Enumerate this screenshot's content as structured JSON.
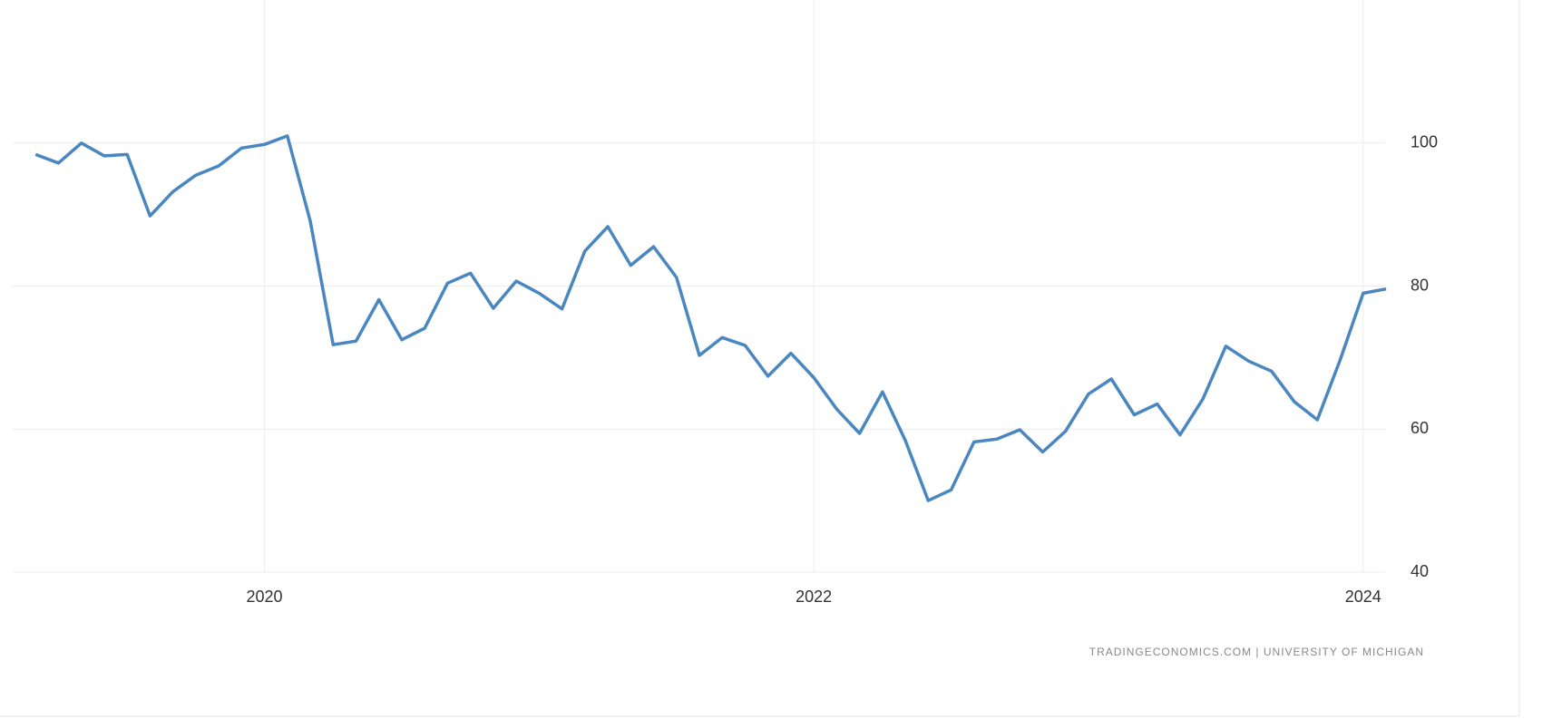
{
  "chart_data": {
    "type": "line",
    "source": "TRADINGECONOMICS.COM | UNIVERSITY OF MICHIGAN",
    "x": [
      "2019-03",
      "2019-04",
      "2019-05",
      "2019-06",
      "2019-07",
      "2019-08",
      "2019-09",
      "2019-10",
      "2019-11",
      "2019-12",
      "2020-01",
      "2020-02",
      "2020-03",
      "2020-04",
      "2020-05",
      "2020-06",
      "2020-07",
      "2020-08",
      "2020-09",
      "2020-10",
      "2020-11",
      "2020-12",
      "2021-01",
      "2021-02",
      "2021-03",
      "2021-04",
      "2021-05",
      "2021-06",
      "2021-07",
      "2021-08",
      "2021-09",
      "2021-10",
      "2021-11",
      "2021-12",
      "2022-01",
      "2022-02",
      "2022-03",
      "2022-04",
      "2022-05",
      "2022-06",
      "2022-07",
      "2022-08",
      "2022-09",
      "2022-10",
      "2022-11",
      "2022-12",
      "2023-01",
      "2023-02",
      "2023-03",
      "2023-04",
      "2023-05",
      "2023-06",
      "2023-07",
      "2023-08",
      "2023-09",
      "2023-10",
      "2023-11",
      "2023-12",
      "2024-01",
      "2024-02"
    ],
    "series": [
      {
        "color": "#4a86c0",
        "values": [
          98.4,
          97.2,
          100.0,
          98.2,
          98.4,
          89.8,
          93.2,
          95.5,
          96.8,
          99.3,
          99.8,
          101.0,
          89.1,
          71.8,
          72.3,
          78.1,
          72.5,
          74.1,
          80.4,
          81.8,
          76.9,
          80.7,
          79.0,
          76.8,
          84.9,
          88.3,
          82.9,
          85.5,
          81.2,
          70.3,
          72.8,
          71.7,
          67.4,
          70.6,
          67.2,
          62.8,
          59.4,
          65.2,
          58.4,
          50.0,
          51.5,
          58.2,
          58.6,
          59.9,
          56.8,
          59.7,
          64.9,
          67.0,
          62.0,
          63.5,
          59.2,
          64.2,
          71.6,
          69.5,
          68.1,
          63.8,
          61.3,
          69.7,
          79.0,
          79.6
        ]
      }
    ],
    "xlim": [
      2019.09,
      2024.08
    ],
    "xticks": [
      2020,
      2022,
      2024
    ],
    "ylim": [
      40,
      120
    ],
    "yticks": [
      40,
      60,
      80,
      100
    ],
    "grid": true
  }
}
